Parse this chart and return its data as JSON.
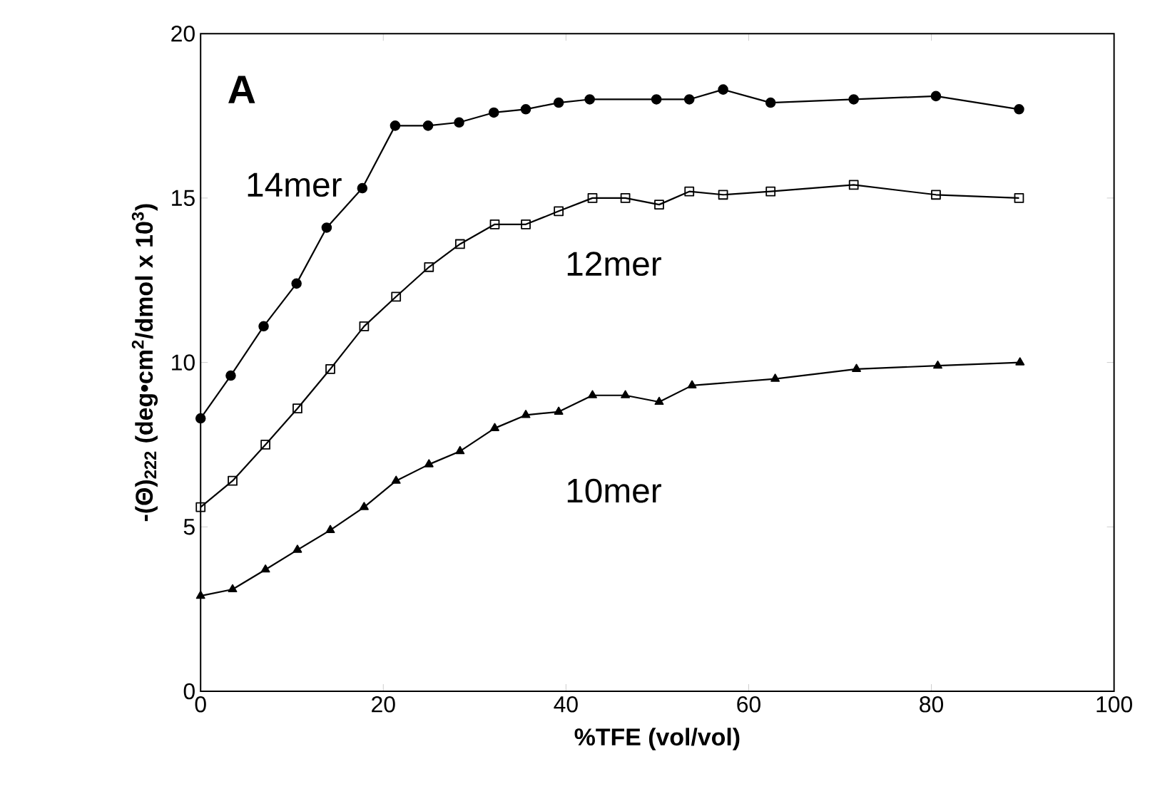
{
  "chart_data": {
    "type": "line",
    "xlabel": "%TFE  (vol/vol)",
    "ylabel": "-(Θ)$_{222}$  (deg•cm$^{2}$/dmol x 10$^{3}$)",
    "annotations": [
      "A"
    ],
    "xlim": [
      0,
      100
    ],
    "ylim": [
      0,
      20
    ],
    "xticks": [
      0,
      20,
      40,
      60,
      80,
      100
    ],
    "yticks": [
      0,
      5,
      10,
      15,
      20
    ],
    "grid": false,
    "legend": false,
    "series": [
      {
        "name": "14mer",
        "color": "#000000",
        "marker": "circle",
        "x": [
          0,
          3.3,
          6.9,
          10.5,
          13.8,
          17.7,
          21.3,
          24.9,
          28.3,
          32.1,
          35.6,
          39.2,
          42.6,
          49.9,
          53.5,
          57.2,
          62.4,
          71.5,
          80.5,
          89.6
        ],
        "values": [
          8.3,
          9.6,
          11.1,
          12.4,
          14.1,
          15.3,
          17.2,
          17.2,
          17.3,
          17.6,
          17.7,
          17.9,
          18.0,
          18.0,
          18.0,
          18.3,
          17.9,
          18.0,
          18.1,
          17.7
        ]
      },
      {
        "name": "12mer",
        "color": "#000000",
        "marker": "square",
        "x": [
          0,
          3.5,
          7.1,
          10.6,
          14.2,
          17.9,
          21.4,
          25.0,
          28.4,
          32.2,
          35.6,
          39.2,
          42.9,
          46.5,
          50.2,
          53.5,
          57.2,
          62.4,
          71.5,
          80.5,
          89.6
        ],
        "values": [
          5.6,
          6.4,
          7.5,
          8.6,
          9.8,
          11.1,
          12.0,
          12.9,
          13.6,
          14.2,
          14.2,
          14.6,
          15.0,
          15.0,
          14.8,
          15.2,
          15.1,
          15.2,
          15.4,
          15.1,
          15.0
        ]
      },
      {
        "name": "10mer",
        "color": "#000000",
        "marker": "triangle",
        "x": [
          0,
          3.5,
          7.1,
          10.6,
          14.2,
          17.9,
          21.4,
          25.0,
          28.4,
          32.2,
          35.6,
          39.2,
          42.9,
          46.5,
          50.2,
          53.8,
          62.9,
          71.8,
          80.7,
          89.7
        ],
        "values": [
          2.9,
          3.1,
          3.7,
          4.3,
          4.9,
          5.6,
          6.4,
          6.9,
          7.3,
          8.0,
          8.4,
          8.5,
          9.0,
          9.0,
          8.8,
          9.3,
          9.5,
          9.8,
          9.9,
          10.0
        ]
      }
    ]
  }
}
